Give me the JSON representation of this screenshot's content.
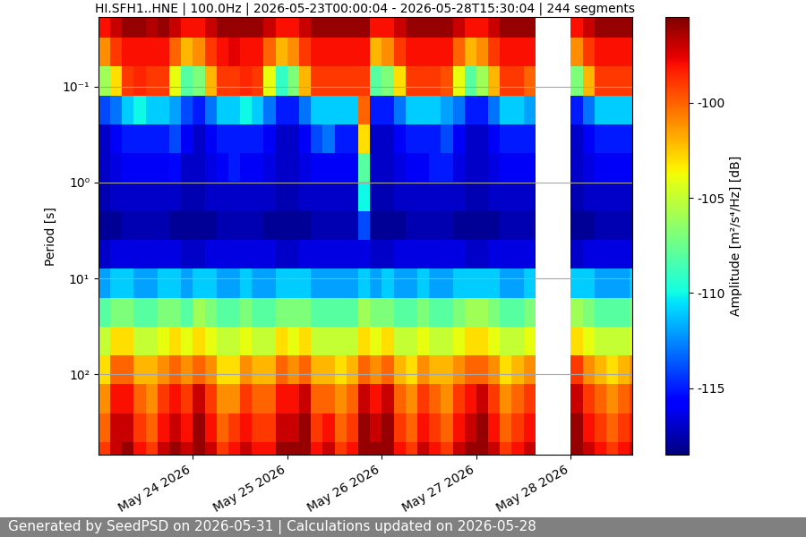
{
  "chart_data": {
    "type": "heatmap",
    "title": "HI.SFH1..HNE | 100.0Hz | 2026-05-23T00:00:04 - 2026-05-28T15:30:04 | 244 segments",
    "y_label": "Period [s]",
    "colorbar_label": "Amplitude [m²/s⁴/Hz] [dB]",
    "footer": "Generated by SeedPSD on 2026-05-31 | Calculations updated on 2026-05-28",
    "log": "y",
    "grid": "y",
    "xlim": [
      "2026-05-23T00:00:04",
      "2026-05-28T15:30:04"
    ],
    "xticks": [
      {
        "value": "2026-05-24T00:00:00",
        "label": "May 24 2026"
      },
      {
        "value": "2026-05-25T00:00:00",
        "label": "May 25 2026"
      },
      {
        "value": "2026-05-26T00:00:00",
        "label": "May 26 2026"
      },
      {
        "value": "2026-05-27T00:00:00",
        "label": "May 27 2026"
      },
      {
        "value": "2026-05-28T00:00:00",
        "label": "May 28 2026"
      }
    ],
    "ylim": [
      690,
      0.019
    ],
    "yticks": [
      {
        "value": 0.1,
        "label": "10⁻¹"
      },
      {
        "value": 1,
        "label": "10⁰"
      },
      {
        "value": 10,
        "label": "10¹"
      },
      {
        "value": 100,
        "label": "10²"
      }
    ],
    "color_range": [
      -118.5,
      -95.5
    ],
    "color_ticks": [
      -100,
      -105,
      -110,
      -115
    ],
    "x": [
      "2026-05-23T01:30:00",
      "2026-05-23T04:30:00",
      "2026-05-23T07:30:00",
      "2026-05-23T10:30:00",
      "2026-05-23T13:30:00",
      "2026-05-23T16:30:00",
      "2026-05-23T19:30:00",
      "2026-05-23T22:30:00",
      "2026-05-24T01:30:00",
      "2026-05-24T04:30:00",
      "2026-05-24T07:30:00",
      "2026-05-24T10:30:00",
      "2026-05-24T13:30:00",
      "2026-05-24T16:30:00",
      "2026-05-24T19:30:00",
      "2026-05-24T22:30:00",
      "2026-05-25T01:30:00",
      "2026-05-25T04:30:00",
      "2026-05-25T07:30:00",
      "2026-05-25T10:30:00",
      "2026-05-25T13:30:00",
      "2026-05-25T16:30:00",
      "2026-05-25T19:30:00",
      "2026-05-25T22:30:00",
      "2026-05-26T01:30:00",
      "2026-05-26T04:30:00",
      "2026-05-26T07:30:00",
      "2026-05-26T10:30:00",
      "2026-05-26T13:30:00",
      "2026-05-26T16:30:00",
      "2026-05-26T19:30:00",
      "2026-05-26T22:30:00",
      "2026-05-27T01:30:00",
      "2026-05-27T04:30:00",
      "2026-05-27T07:30:00",
      "2026-05-27T10:30:00",
      "2026-05-27T13:30:00",
      "2026-05-27T16:30:00",
      "2026-05-27T19:30:00",
      "2026-05-27T22:30:00",
      "2026-05-28T01:30:00",
      "2026-05-28T04:30:00",
      "2026-05-28T07:30:00",
      "2026-05-28T10:30:00",
      "2026-05-28T13:30:00",
      "2026-05-28T16:30:00"
    ],
    "periods": [
      0.022,
      0.044,
      0.088,
      0.176,
      0.35,
      0.7,
      1.4,
      2.8,
      5.6,
      11.2,
      22.5,
      45,
      90,
      180,
      360,
      720
    ],
    "cells": [
      [
        -98,
        -97,
        -96,
        -96,
        -96.5,
        -96,
        -97,
        -98,
        -98,
        -97,
        -96,
        -96,
        -96,
        -96,
        -97,
        -98,
        -98,
        -97,
        -96,
        -96,
        -96,
        -96,
        -96,
        -98,
        -98,
        -97,
        -96,
        -96,
        -96,
        -96,
        -97,
        -98,
        -98,
        -97,
        -96,
        -96,
        -96,
        null,
        null,
        null,
        -98,
        -97,
        -96,
        -96,
        -96,
        -96
      ],
      [
        -101,
        -99,
        -98,
        -98,
        -98,
        -98,
        -100,
        -102,
        -101,
        -99,
        -98,
        -97.5,
        -98,
        -98,
        -100,
        -102,
        -101,
        -99,
        -98,
        -98,
        -98,
        -98,
        -98,
        -102,
        -101,
        -99,
        -98,
        -98,
        -98,
        -98,
        -100,
        -102,
        -101,
        -99,
        -98,
        -98,
        -98,
        null,
        null,
        null,
        -101,
        -99,
        -98,
        -98,
        -98,
        -98
      ],
      [
        -106,
        -103,
        -99,
        -98.5,
        -99,
        -99,
        -104,
        -108,
        -107,
        -102,
        -99,
        -99,
        -98.5,
        -99,
        -104,
        -109,
        -107,
        -102,
        -99,
        -99,
        -99,
        -99,
        -99,
        -108,
        -107,
        -103,
        -99,
        -99,
        -99,
        -99.5,
        -104,
        -108,
        -106,
        -102,
        -99,
        -99,
        -100,
        null,
        null,
        null,
        -107,
        -102,
        -99,
        -99,
        -99,
        -99
      ],
      [
        -114,
        -113,
        -111,
        -110,
        -111,
        -111,
        -112,
        -114,
        -115,
        -113,
        -111,
        -111,
        -110,
        -111,
        -113,
        -115,
        -115,
        -113,
        -111,
        -111,
        -111,
        -111,
        -100,
        -115,
        -115,
        -113,
        -111,
        -111,
        -111,
        -112,
        -113,
        -115,
        -115,
        -113,
        -111,
        -111,
        -112,
        null,
        null,
        null,
        -115,
        -113,
        -111,
        -111,
        -111,
        -111
      ],
      [
        -117,
        -116,
        -115,
        -115,
        -115,
        -115,
        -114,
        -116,
        -117,
        -116,
        -115,
        -115,
        -115,
        -115,
        -116,
        -117,
        -117,
        -116,
        -114,
        -113,
        -115,
        -115,
        -103,
        -117,
        -117,
        -116,
        -115,
        -115,
        -115,
        -114,
        -116,
        -117,
        -117,
        -116,
        -115,
        -115,
        -115,
        null,
        null,
        null,
        -117,
        -116,
        -115,
        -115,
        -115,
        -115
      ],
      [
        -117,
        -116.5,
        -116,
        -116,
        -116,
        -116,
        -115.5,
        -117,
        -117,
        -116.5,
        -116,
        -115,
        -116,
        -116,
        -116.5,
        -117,
        -117,
        -116.5,
        -116,
        -116,
        -116,
        -116,
        -108,
        -117,
        -117,
        -116.5,
        -116,
        -116,
        -115,
        -115,
        -116.5,
        -117,
        -117,
        -116.5,
        -116,
        -116,
        -116,
        null,
        null,
        null,
        -117,
        -116.5,
        -116,
        -116,
        -116,
        -116
      ],
      [
        -117.5,
        -117,
        -117,
        -117,
        -117,
        -117,
        -117,
        -117.5,
        -117.5,
        -117,
        -117,
        -117,
        -117,
        -117,
        -117,
        -117.5,
        -117.5,
        -117,
        -117,
        -117,
        -117,
        -117,
        -110,
        -117.5,
        -117.5,
        -117,
        -117,
        -117,
        -117,
        -117,
        -117,
        -117.5,
        -117.5,
        -117,
        -117,
        -117,
        -117,
        null,
        null,
        null,
        -117.5,
        -117,
        -117,
        -117,
        -117,
        -117
      ],
      [
        -118,
        -118,
        -117.5,
        -117.5,
        -117.5,
        -117.5,
        -118,
        -118,
        -118,
        -118,
        -117.5,
        -117.5,
        -117.5,
        -117.5,
        -118,
        -118,
        -118,
        -118,
        -117.5,
        -117.5,
        -117.5,
        -117.5,
        -114,
        -118,
        -118,
        -118,
        -117.5,
        -117.5,
        -117.5,
        -117.5,
        -118,
        -118,
        -118,
        -118,
        -117.5,
        -117.5,
        -117.5,
        null,
        null,
        null,
        -118,
        -118,
        -117.5,
        -117.5,
        -117.5,
        -117.5
      ],
      [
        -117,
        -116.5,
        -116.5,
        -116.5,
        -116.5,
        -116.5,
        -116.5,
        -117,
        -117,
        -116.5,
        -116.5,
        -116.5,
        -116.5,
        -116.5,
        -116.5,
        -117,
        -117,
        -116.5,
        -116.5,
        -116.5,
        -116.5,
        -116.5,
        -116.5,
        -117,
        -117,
        -116.5,
        -116.5,
        -116.5,
        -116.5,
        -116.5,
        -116.5,
        -117,
        -117,
        -116.5,
        -116.5,
        -116.5,
        -116.5,
        null,
        null,
        null,
        -117,
        -116.5,
        -116.5,
        -116.5,
        -116.5,
        -116.5
      ],
      [
        -112,
        -111,
        -111,
        -112,
        -112,
        -111,
        -111,
        -112,
        -111,
        -111,
        -112,
        -112,
        -111,
        -112,
        -112,
        -111,
        -111,
        -111,
        -112,
        -112,
        -112,
        -112,
        -111,
        -112,
        -111,
        -112,
        -112,
        -111,
        -112,
        -112,
        -111,
        -111,
        -111,
        -111,
        -112,
        -112,
        -111,
        null,
        null,
        null,
        -111,
        -111,
        -112,
        -112,
        -112,
        -111
      ],
      [
        -108,
        -107,
        -107,
        -108,
        -108,
        -107,
        -107,
        -108,
        -106,
        -107,
        -108,
        -108,
        -107,
        -108,
        -108,
        -107,
        -107,
        -107,
        -108,
        -108,
        -108,
        -108,
        -106,
        -107,
        -107,
        -108,
        -108,
        -107,
        -108,
        -108,
        -107,
        -106,
        -106,
        -107,
        -108,
        -108,
        -107,
        null,
        null,
        null,
        -106,
        -107,
        -108,
        -108,
        -108,
        -107
      ],
      [
        -105,
        -103,
        -103,
        -105,
        -105,
        -104,
        -103,
        -104,
        -103,
        -104,
        -105,
        -105,
        -104,
        -105,
        -105,
        -103,
        -104,
        -103,
        -105,
        -105,
        -105,
        -105,
        -103,
        -104,
        -103,
        -105,
        -105,
        -104,
        -105,
        -105,
        -104,
        -103,
        -103,
        -104,
        -105,
        -105,
        -104,
        null,
        null,
        null,
        -103,
        -104,
        -105,
        -105,
        -105,
        -104
      ],
      [
        -103,
        -100,
        -100,
        -102,
        -102,
        -101,
        -100,
        -101,
        -100,
        -101,
        -103,
        -103,
        -101,
        -102,
        -102,
        -100,
        -101,
        -100,
        -102,
        -102,
        -103,
        -102,
        -100,
        -101,
        -100,
        -102,
        -103,
        -101,
        -102,
        -102,
        -101,
        -100,
        -100,
        -101,
        -103,
        -102,
        -101,
        null,
        null,
        null,
        -99,
        -101,
        -102,
        -103,
        -102,
        -101
      ],
      [
        -101,
        -98,
        -98,
        -100,
        -101,
        -99,
        -98,
        -99,
        -97,
        -99,
        -101,
        -101,
        -99,
        -100,
        -100,
        -98,
        -98,
        -97,
        -100,
        -100,
        -101,
        -100,
        -97,
        -98,
        -97,
        -100,
        -101,
        -99,
        -100,
        -101,
        -99,
        -98,
        -97,
        -99,
        -101,
        -100,
        -99,
        null,
        null,
        null,
        -97,
        -99,
        -100,
        -101,
        -100,
        -99
      ],
      [
        -100,
        -97,
        -97,
        -99,
        -100,
        -98,
        -97,
        -98,
        -96,
        -98,
        -100,
        -99,
        -98,
        -99,
        -99,
        -97,
        -97,
        -96,
        -99,
        -98,
        -100,
        -99,
        -96,
        -97,
        -96,
        -99,
        -100,
        -98,
        -99,
        -100,
        -98,
        -97,
        -96,
        -98,
        -100,
        -99,
        -98,
        null,
        null,
        null,
        -96,
        -98,
        -99,
        -100,
        -99,
        -98
      ],
      [
        -99,
        -97,
        -96,
        -98,
        -99,
        -97,
        -96,
        -97,
        -96,
        -97,
        -99,
        -98,
        -97,
        -98,
        -98,
        -96,
        -96,
        -96,
        -98,
        -97,
        -99,
        -98,
        -96,
        -96,
        -96,
        -98,
        -99,
        -97,
        -98,
        -99,
        -97,
        -96,
        -96,
        -97,
        -99,
        -98,
        -97,
        null,
        null,
        null,
        -96,
        -97,
        -98,
        -99,
        -98,
        -97
      ]
    ]
  }
}
